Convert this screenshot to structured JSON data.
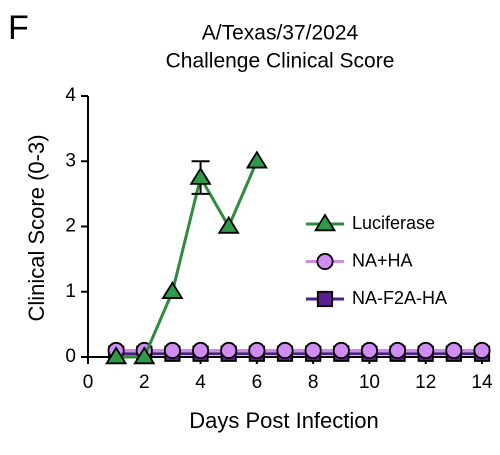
{
  "panel_label": "F",
  "chart_data": {
    "type": "line",
    "title": "A/Texas/37/2024",
    "subtitle": "Challenge Clinical Score",
    "x_label": "Days Post Infection",
    "y_label": "Clinical Score (0-3)",
    "xlim": [
      0,
      14
    ],
    "xticks": [
      0,
      2,
      4,
      6,
      8,
      10,
      12,
      14
    ],
    "ylim": [
      0,
      4
    ],
    "yticks": [
      0,
      1,
      2,
      3,
      4
    ],
    "series": [
      {
        "name": "Luciferase",
        "color": "#2e8b3f",
        "fill": "#2f9a48",
        "marker": "triangle",
        "x": [
          1,
          2,
          3,
          4,
          5,
          6
        ],
        "values": [
          0,
          0,
          1,
          2.75,
          2,
          3
        ],
        "errors": [
          null,
          null,
          null,
          0.25,
          null,
          null
        ]
      },
      {
        "name": "NA+HA",
        "color": "#d28ce8",
        "fill": "#d08cf0",
        "marker": "circle",
        "x": [
          1,
          2,
          3,
          4,
          5,
          6,
          7,
          8,
          9,
          10,
          11,
          12,
          13,
          14
        ],
        "values": [
          0.1,
          0.1,
          0.1,
          0.1,
          0.1,
          0.1,
          0.1,
          0.1,
          0.1,
          0.1,
          0.1,
          0.1,
          0.1,
          0.1
        ]
      },
      {
        "name": "NA-F2A-HA",
        "color": "#4e1f80",
        "fill": "#5a1e8e",
        "marker": "square",
        "x": [
          1,
          2,
          3,
          4,
          5,
          6,
          7,
          8,
          9,
          10,
          11,
          12,
          13,
          14
        ],
        "values": [
          0.05,
          0.05,
          0.05,
          0.05,
          0.05,
          0.05,
          0.05,
          0.05,
          0.05,
          0.05,
          0.05,
          0.05,
          0.05,
          0.05
        ]
      }
    ]
  }
}
